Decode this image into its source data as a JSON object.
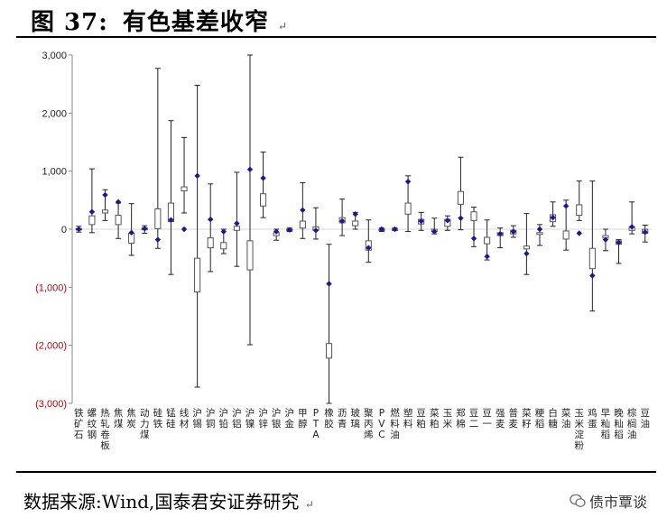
{
  "header": {
    "figure_label": "图 37:",
    "title": "有色基差收窄",
    "mark": "↵"
  },
  "footer": {
    "source": "数据来源:Wind,国泰君安证券研究",
    "mark": "↵",
    "brand": "债市覃谈",
    "brand_icon": "wechat-icon"
  },
  "colors": {
    "box_fill": "#ffffff",
    "box_stroke": "#555555",
    "marker": "#1a1a8c",
    "neg_tick": "#c00000",
    "zero_line": "#d9d9d9"
  },
  "chart_data": {
    "type": "boxplot",
    "ylim": [
      -3000,
      3000
    ],
    "yticks": [
      3000,
      2000,
      1000,
      0,
      -1000,
      -2000,
      -3000
    ],
    "ytick_labels": [
      "3,000",
      "2,000",
      "1,000",
      "0",
      "(1,000)",
      "(2,000)",
      "(3,000)"
    ],
    "categories": [
      "铁矿石",
      "螺纹钢",
      "热轧卷板",
      "焦煤",
      "焦炭",
      "动力煤",
      "硅铁",
      "锰硅",
      "线材",
      "沪锡",
      "沪铜",
      "沪铅",
      "沪铝",
      "沪镍",
      "沪锌",
      "沪银",
      "沪金",
      "甲醇",
      "PTA",
      "橡胶",
      "沥青",
      "玻璃",
      "聚丙烯",
      "PVC",
      "燃料油",
      "塑料",
      "豆粕",
      "菜粕",
      "玉米",
      "郑棉",
      "豆二",
      "豆一",
      "强麦",
      "普麦",
      "菜籽",
      "粳稻",
      "白糖",
      "菜油",
      "玉米淀粉",
      "鸡蛋",
      "早籼稻",
      "晚籼稻",
      "棕榈油",
      "豆油"
    ],
    "series": [
      {
        "stat": "max",
        "values": [
          50,
          1040,
          680,
          450,
          440,
          60,
          2770,
          1870,
          1580,
          2480,
          780,
          0,
          980,
          3000,
          1330,
          0,
          20,
          800,
          370,
          -260,
          520,
          290,
          160,
          20,
          20,
          920,
          290,
          190,
          230,
          1240,
          380,
          160,
          20,
          60,
          270,
          80,
          470,
          500,
          830,
          830,
          0,
          -180,
          470,
          70
        ]
      },
      {
        "stat": "q3",
        "values": [
          10,
          230,
          330,
          240,
          -70,
          20,
          350,
          450,
          730,
          -500,
          -150,
          -230,
          50,
          -200,
          610,
          -60,
          0,
          140,
          40,
          -1970,
          200,
          140,
          -200,
          0,
          0,
          450,
          170,
          0,
          170,
          650,
          300,
          -140,
          -60,
          -20,
          -290,
          -60,
          250,
          -30,
          420,
          -330,
          -110,
          -200,
          40,
          0
        ]
      },
      {
        "stat": "q1",
        "values": [
          -10,
          80,
          280,
          80,
          -240,
          -10,
          10,
          130,
          660,
          -1080,
          -320,
          -340,
          -20,
          -700,
          400,
          -110,
          -10,
          20,
          -20,
          -2220,
          110,
          60,
          -360,
          -10,
          -20,
          260,
          90,
          -40,
          50,
          430,
          150,
          -250,
          -110,
          -80,
          -340,
          -90,
          130,
          -170,
          240,
          -680,
          -150,
          -260,
          -20,
          -70
        ]
      },
      {
        "stat": "min",
        "values": [
          -50,
          -60,
          150,
          -160,
          -450,
          -70,
          -330,
          -780,
          280,
          -2720,
          -730,
          -420,
          -640,
          -1990,
          200,
          -190,
          -40,
          -160,
          -170,
          -3000,
          -110,
          0,
          -570,
          -40,
          -20,
          -40,
          -20,
          -80,
          -20,
          -10,
          -300,
          -530,
          -320,
          -140,
          -780,
          -280,
          50,
          -360,
          150,
          -1410,
          -370,
          -590,
          -80,
          -220
        ]
      },
      {
        "stat": "current",
        "values": [
          0,
          300,
          590,
          470,
          -60,
          10,
          -180,
          160,
          0,
          920,
          170,
          -40,
          100,
          1030,
          880,
          -40,
          -10,
          330,
          -20,
          -940,
          140,
          260,
          -320,
          0,
          0,
          820,
          140,
          -40,
          150,
          190,
          -160,
          -470,
          -80,
          -40,
          -420,
          0,
          200,
          400,
          -70,
          -800,
          -180,
          -230,
          40,
          -50
        ]
      }
    ]
  }
}
